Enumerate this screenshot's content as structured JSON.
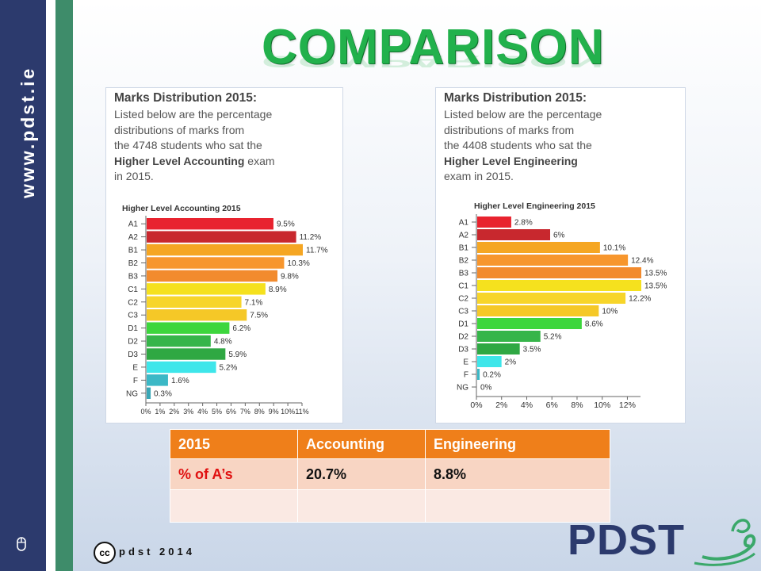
{
  "slide": {
    "title": "COMPARISON",
    "url": "www.pdst.ie",
    "copyright": "pdst 2014",
    "cc_mark": "cc",
    "logo_text": "PDST",
    "icons": [
      "mouse-icon",
      "creative-commons-icon",
      "pdst-logo-swirl-icon"
    ],
    "colors": {
      "sidebar": "#2c3a6d",
      "stripe": "#3e8c6a",
      "title": "#22b14c",
      "table_header": "#ef7f1a"
    }
  },
  "panels": {
    "accounting": {
      "heading": "Marks Distribution 2015:",
      "line1": "Listed below are the percentage",
      "line2": "distributions of marks from",
      "line3": "the 4748 students who sat the",
      "bold": "Higher Level Accounting",
      "after_bold": " exam",
      "line5": "in 2015."
    },
    "engineering": {
      "heading": "Marks Distribution 2015:",
      "line1": "Listed below are the percentage",
      "line2": "distributions of marks from",
      "line3": "the 4408 students who sat the",
      "bold": "Higher Level Engineering",
      "line5": "exam in 2015."
    }
  },
  "chart_data": [
    {
      "type": "bar",
      "orientation": "horizontal",
      "title": "Higher Level Accounting 2015",
      "categories": [
        "A1",
        "A2",
        "B1",
        "B2",
        "B3",
        "C1",
        "C2",
        "C3",
        "D1",
        "D2",
        "D3",
        "E",
        "F",
        "NG"
      ],
      "values": [
        9.5,
        11.2,
        11.7,
        10.3,
        9.8,
        8.9,
        7.1,
        7.5,
        6.2,
        4.8,
        5.9,
        5.2,
        1.6,
        0.3
      ],
      "data_labels": [
        "9.5%",
        "11.2%",
        "11.7%",
        "10.3%",
        "9.8%",
        "8.9%",
        "7.1%",
        "7.5%",
        "6.2%",
        "4.8%",
        "5.9%",
        "5.2%",
        "1.6%",
        "0.3%"
      ],
      "colors": [
        "#e8232f",
        "#c8282e",
        "#f5a623",
        "#f7962d",
        "#f28b2e",
        "#f5e11e",
        "#f7d52a",
        "#f5c827",
        "#3dd63d",
        "#36b54a",
        "#2fa843",
        "#3ee6ea",
        "#3bb8c6",
        "#3aa7b6"
      ],
      "xticks": [
        "0%",
        "1%",
        "2%",
        "3%",
        "4%",
        "5%",
        "6%",
        "7%",
        "8%",
        "9%",
        "10%",
        "11%"
      ],
      "xlim": [
        0,
        11.7
      ]
    },
    {
      "type": "bar",
      "orientation": "horizontal",
      "title": "Higher Level Engineering 2015",
      "categories": [
        "A1",
        "A2",
        "B1",
        "B2",
        "B3",
        "C1",
        "C2",
        "C3",
        "D1",
        "D2",
        "D3",
        "E",
        "F",
        "NG"
      ],
      "values": [
        2.8,
        6,
        10.1,
        12.4,
        13.5,
        13.5,
        12.2,
        10,
        8.6,
        5.2,
        3.5,
        2,
        0.2,
        0
      ],
      "data_labels": [
        "2.8%",
        "6%",
        "10.1%",
        "12.4%",
        "13.5%",
        "13.5%",
        "12.2%",
        "10%",
        "8.6%",
        "5.2%",
        "3.5%",
        "2%",
        "0.2%",
        "0%"
      ],
      "colors": [
        "#e8232f",
        "#c8282e",
        "#f5a623",
        "#f7962d",
        "#f28b2e",
        "#f5e11e",
        "#f7d52a",
        "#f5c827",
        "#3dd63d",
        "#36b54a",
        "#2fa843",
        "#3ee6ea",
        "#3bb8c6",
        "#3aa7b6"
      ],
      "xticks": [
        "0%",
        "2%",
        "4%",
        "6%",
        "8%",
        "10%",
        "12%"
      ],
      "xlim": [
        0,
        13.5
      ]
    }
  ],
  "table": {
    "headers": [
      "2015",
      "Accounting",
      "Engineering"
    ],
    "row1": [
      "% of A’s",
      "20.7%",
      "8.8%"
    ],
    "row2": [
      "",
      "",
      ""
    ]
  }
}
